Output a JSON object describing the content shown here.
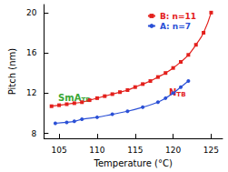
{
  "chart_data": {
    "type": "line",
    "x_label": "Temperature (°C)",
    "y_label": "Pitch (nm)",
    "xlim": [
      103,
      126.5
    ],
    "xticks": [
      105,
      110,
      115,
      120,
      125
    ],
    "ylim": [
      7.5,
      20.8
    ],
    "yticks": [
      8,
      12,
      16,
      20
    ],
    "legend": "top-right",
    "grid": false,
    "series": [
      {
        "name": "B: n=11",
        "color": "#e3201c",
        "marker": "square",
        "line_style": "solid",
        "x": [
          104,
          105,
          106,
          107,
          108,
          109,
          110,
          111,
          112,
          113,
          114,
          115,
          116,
          117,
          118,
          119,
          120,
          121,
          122,
          123,
          124,
          125
        ],
        "values": [
          10.7,
          10.8,
          10.9,
          11.0,
          11.1,
          11.3,
          11.5,
          11.7,
          11.9,
          12.1,
          12.3,
          12.6,
          12.9,
          13.2,
          13.6,
          14.0,
          14.5,
          15.1,
          15.8,
          16.8,
          18.0,
          20.0
        ]
      },
      {
        "name": "A: n=7",
        "color": "#2b50d6",
        "marker": "circle",
        "line_style": "solid",
        "x": [
          104.5,
          106,
          107,
          108,
          110,
          112,
          114,
          116,
          118,
          119,
          120,
          121,
          122
        ],
        "values": [
          9.0,
          9.1,
          9.2,
          9.4,
          9.6,
          9.9,
          10.2,
          10.6,
          11.1,
          11.5,
          12.0,
          12.6,
          13.2
        ]
      }
    ],
    "annotations": [
      {
        "text": "N",
        "subscript": "TB",
        "color": "#e3201c"
      },
      {
        "text": "SmA",
        "subscript": "TB",
        "color": "#3aa836"
      }
    ]
  }
}
